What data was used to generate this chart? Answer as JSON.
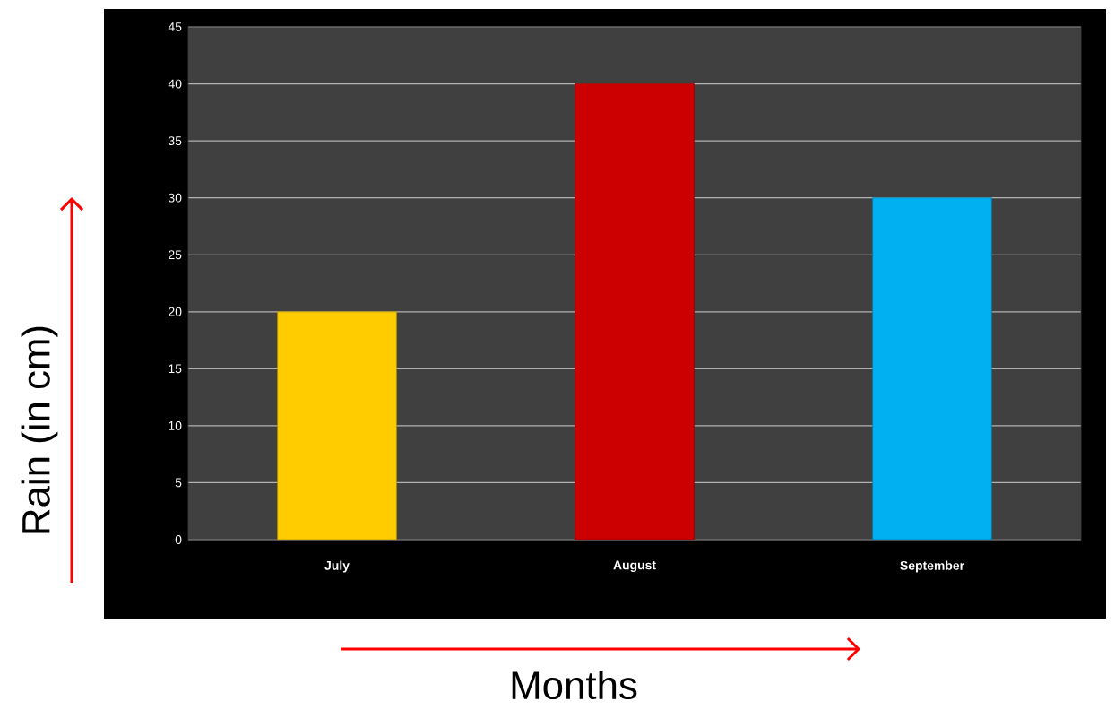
{
  "chart_data": {
    "type": "bar",
    "xlabel": "Months",
    "ylabel": "Rain (in cm)",
    "categories": [
      "July",
      "August",
      "September"
    ],
    "values": [
      20,
      40,
      30
    ],
    "colors": [
      "#ffcc00",
      "#cc0000",
      "#00b0f0"
    ],
    "ylim": [
      0,
      45
    ],
    "yticks": [
      0,
      5,
      10,
      15,
      20,
      25,
      30,
      35,
      40,
      45
    ],
    "grid": "y"
  }
}
